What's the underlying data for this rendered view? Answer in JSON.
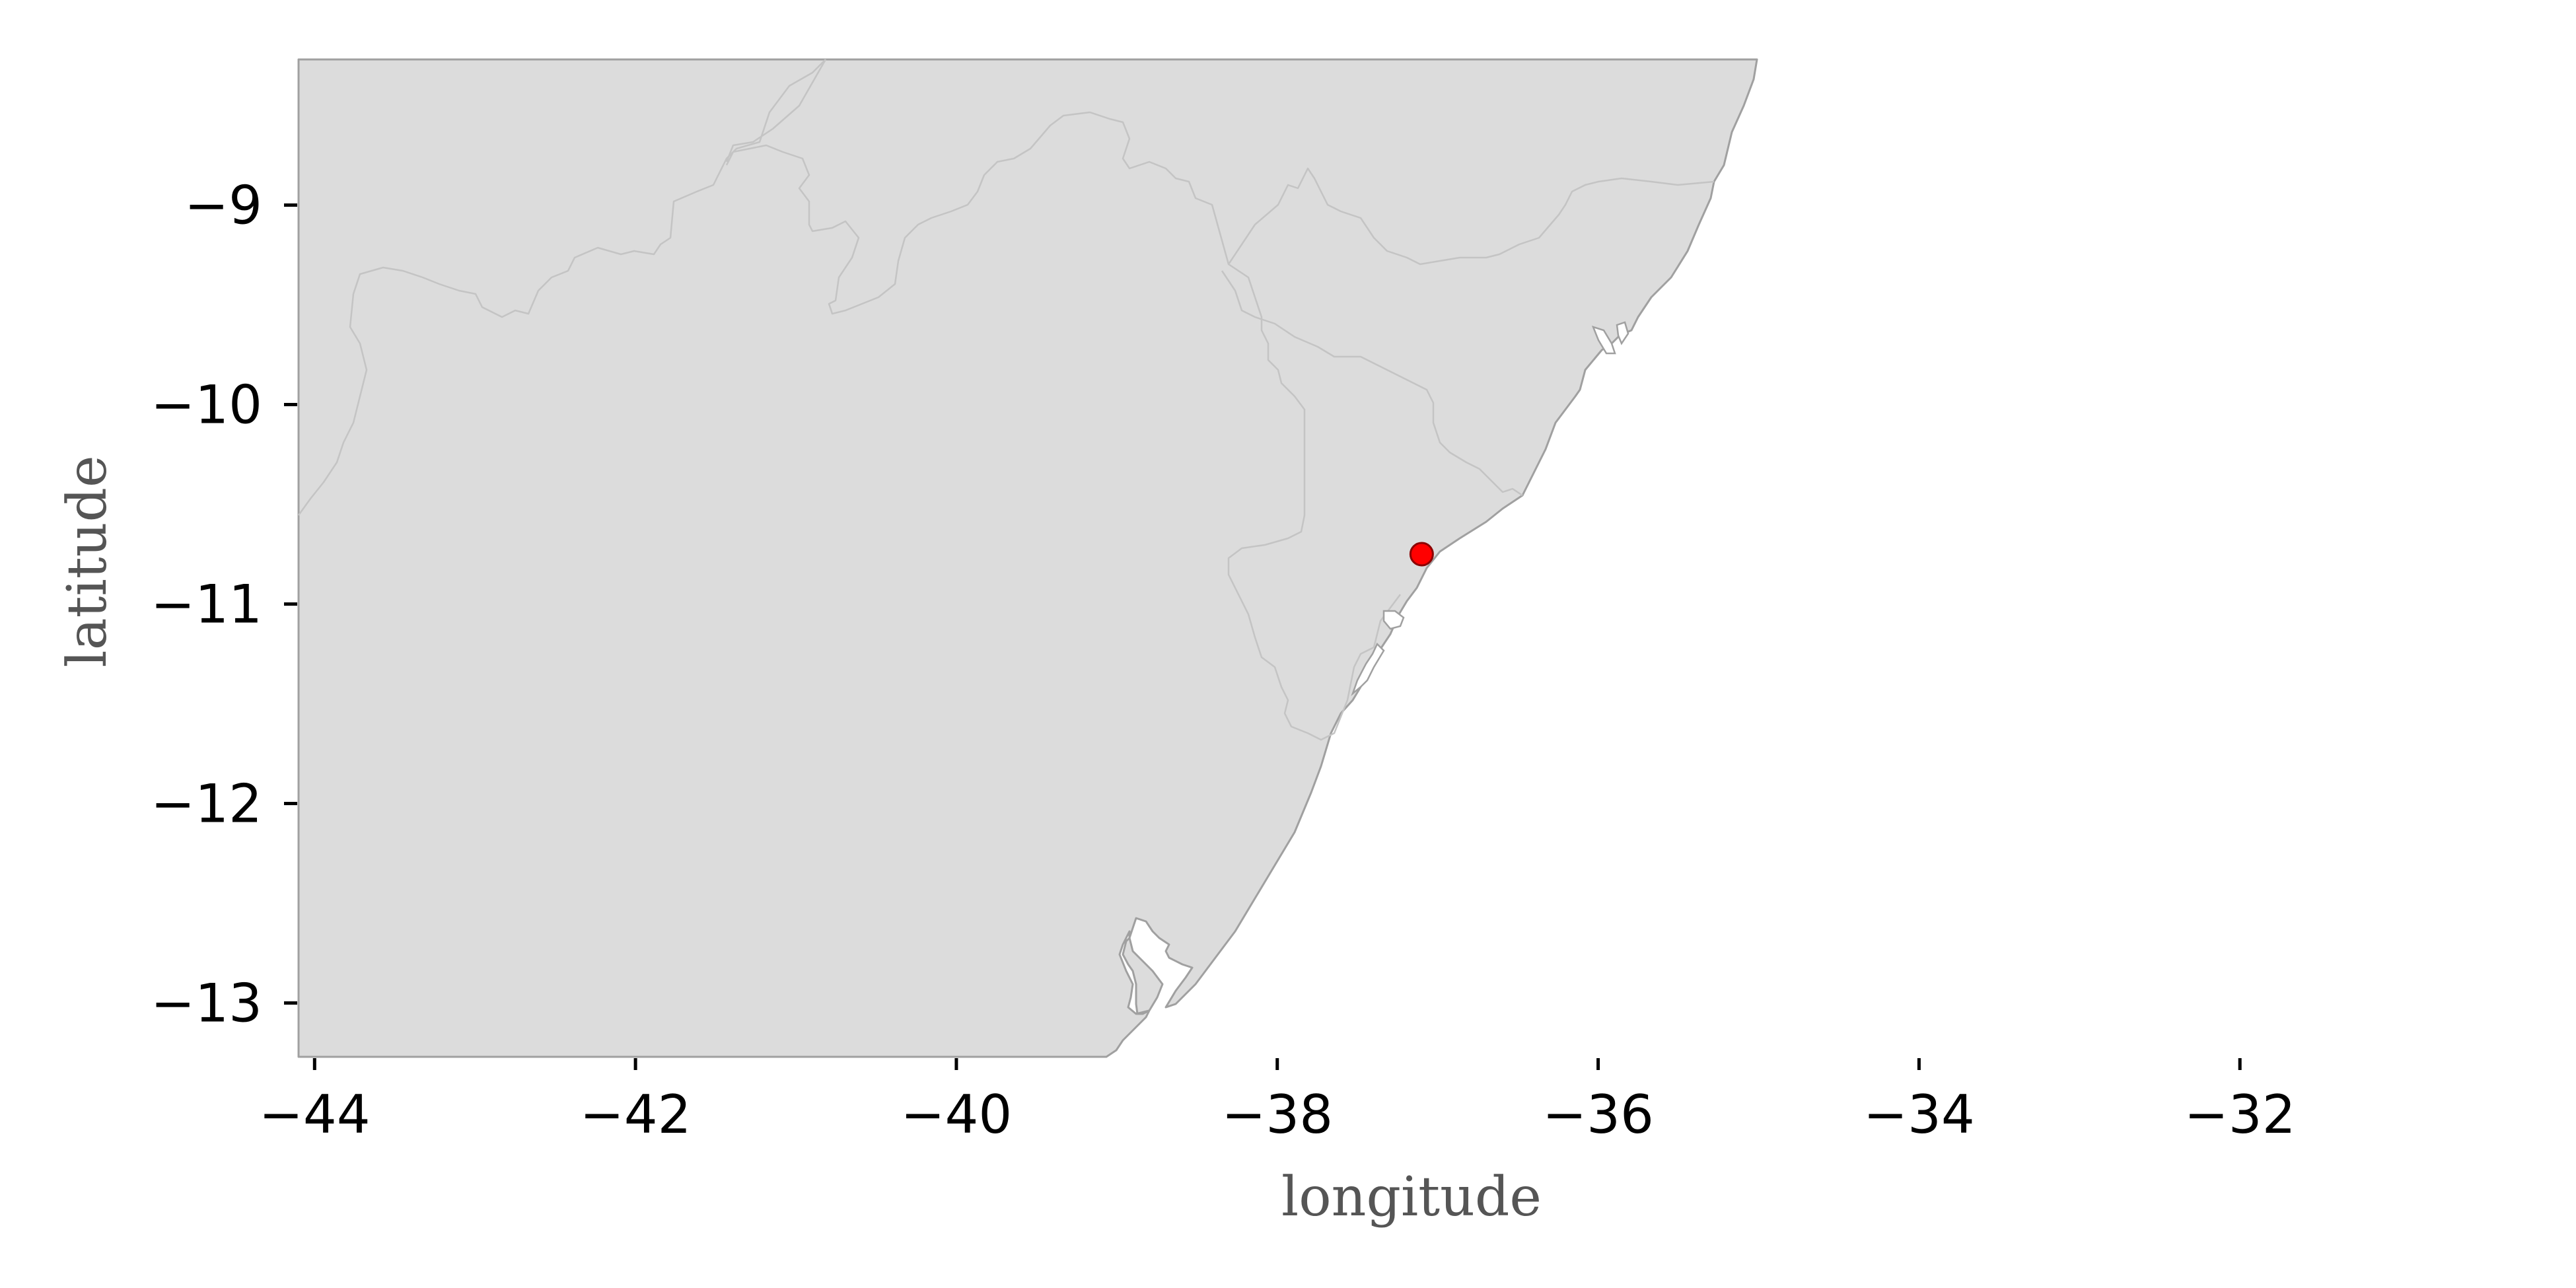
{
  "map": {
    "xlabel": "longitude",
    "ylabel": "latitude",
    "xlim": [
      -44.1,
      -30.0
    ],
    "ylim": [
      -13.27,
      -8.27
    ],
    "x_ticks": [
      {
        "value": -44,
        "label": "−44"
      },
      {
        "value": -42,
        "label": "−42"
      },
      {
        "value": -40,
        "label": "−40"
      },
      {
        "value": -38,
        "label": "−38"
      },
      {
        "value": -36,
        "label": "−36"
      },
      {
        "value": -34,
        "label": "−34"
      },
      {
        "value": -32,
        "label": "−32"
      }
    ],
    "y_ticks": [
      {
        "value": -9,
        "label": "−9"
      },
      {
        "value": -10,
        "label": "−10"
      },
      {
        "value": -11,
        "label": "−11"
      },
      {
        "value": -12,
        "label": "−12"
      },
      {
        "value": -13,
        "label": "−13"
      }
    ],
    "marker": {
      "lon": -37.1,
      "lat": -10.75,
      "color": "#ff0000"
    },
    "colors": {
      "land": "#dcdcdc",
      "coastline": "#a0a0a0",
      "borders": "#c4c4c4",
      "ocean": "#ffffff"
    }
  }
}
